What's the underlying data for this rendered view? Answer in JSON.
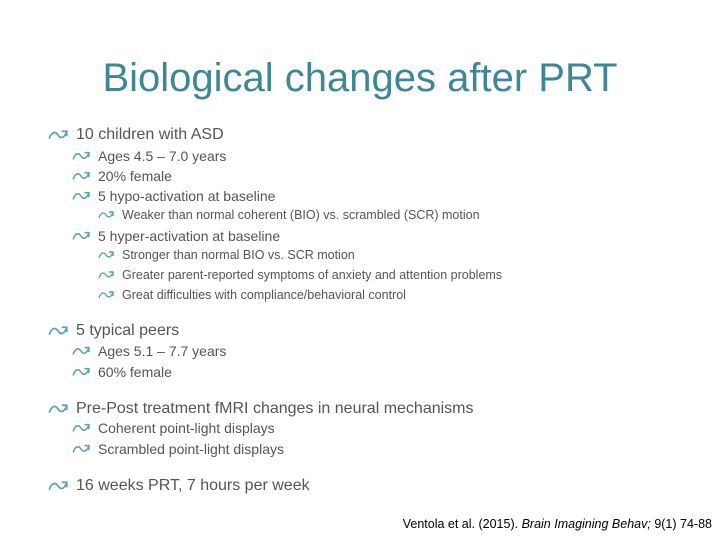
{
  "title": "Biological changes after PRT",
  "bullets": [
    {
      "text": "10 children with ASD",
      "children": [
        {
          "text": "Ages 4.5 – 7.0 years"
        },
        {
          "text": "20% female"
        },
        {
          "text": "5 hypo-activation at baseline",
          "children": [
            {
              "text": "Weaker than normal coherent (BIO) vs. scrambled (SCR) motion"
            }
          ]
        },
        {
          "text": "5 hyper-activation at baseline",
          "children": [
            {
              "text": "Stronger than normal BIO vs. SCR motion"
            },
            {
              "text": "Greater parent-reported symptoms of anxiety and attention problems"
            },
            {
              "text": "Great difficulties with compliance/behavioral control"
            }
          ]
        }
      ]
    },
    {
      "text": "5 typical peers",
      "children": [
        {
          "text": "Ages 5.1 – 7.7 years"
        },
        {
          "text": "60% female"
        }
      ]
    },
    {
      "text": "Pre-Post treatment fMRI changes in neural mechanisms",
      "children": [
        {
          "text": "Coherent point-light displays"
        },
        {
          "text": "Scrambled point-light displays"
        }
      ]
    },
    {
      "text": "16 weeks PRT, 7 hours per week"
    }
  ],
  "citation": {
    "authors": "Ventola et al. (2015).",
    "journal": "Brain Imagining Behav;",
    "volume": "9(1) 74-88"
  }
}
